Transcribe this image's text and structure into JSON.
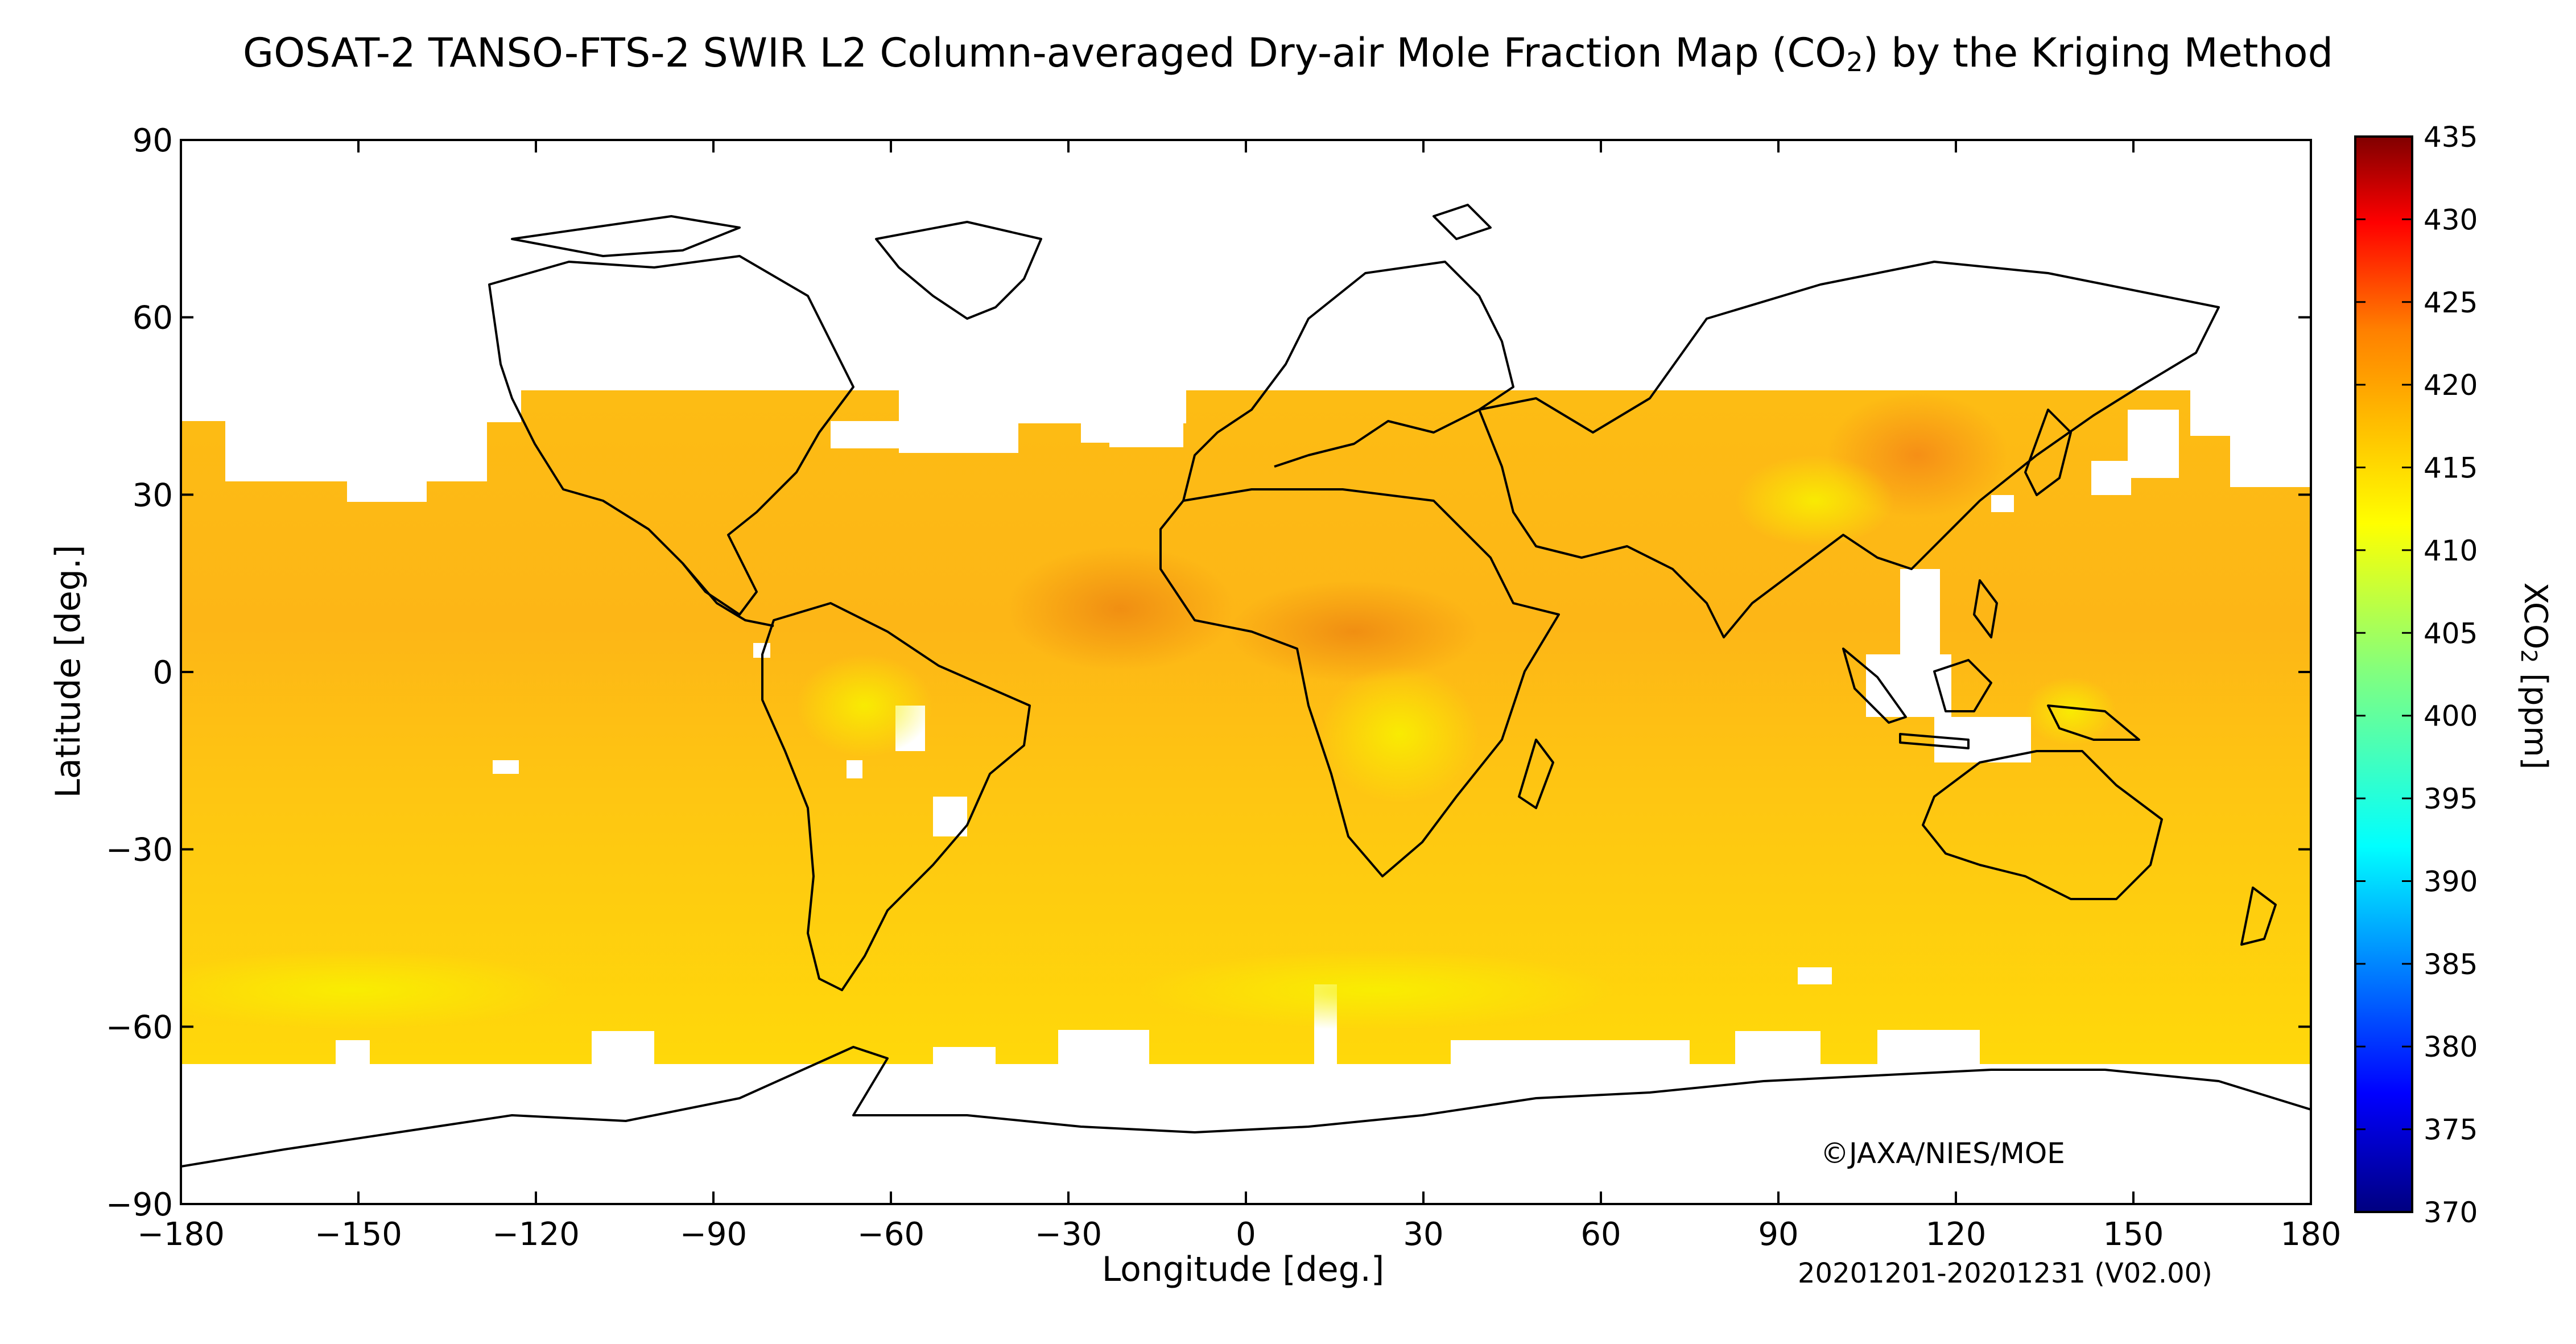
{
  "title": {
    "pre": "GOSAT-2 TANSO-FTS-2 SWIR L2 Column-averaged Dry-air Mole Fraction Map (CO",
    "sub": "2",
    "post": ") by the Kriging Method"
  },
  "axes": {
    "xlabel": "Longitude [deg.]",
    "ylabel": "Latitude [deg.]",
    "xlim": [
      -180,
      180
    ],
    "ylim": [
      -90,
      90
    ],
    "xticks": [
      -180,
      -150,
      -120,
      -90,
      -60,
      -30,
      0,
      30,
      60,
      90,
      120,
      150,
      180
    ],
    "yticks": [
      90,
      60,
      30,
      0,
      -30,
      -60,
      -90
    ],
    "xtick_labels": [
      "−180",
      "−150",
      "−120",
      "−90",
      "−60",
      "−30",
      "0",
      "30",
      "60",
      "90",
      "120",
      "150",
      "180"
    ],
    "ytick_labels": [
      "90",
      "60",
      "30",
      "0",
      "−30",
      "−60",
      "−90"
    ]
  },
  "colorbar": {
    "label_pre": "XCO",
    "label_sub": "2",
    "label_post": " [ppm]",
    "range": [
      370,
      435
    ],
    "ticks": [
      435,
      430,
      425,
      420,
      415,
      410,
      405,
      400,
      395,
      390,
      385,
      380,
      375,
      370
    ],
    "colors": [
      "#000080",
      "#0000ff",
      "#0080ff",
      "#00ffff",
      "#80ff80",
      "#ffff00",
      "#ff8000",
      "#ff0000",
      "#800000"
    ]
  },
  "copyright": "©JAXA/NIES/MOE",
  "period": "20201201-20201231 (V02.00)",
  "chart_data": {
    "type": "heatmap",
    "variable": "XCO2",
    "units": "ppm",
    "lat_coverage": [
      -67,
      47
    ],
    "typical_value": 415,
    "hotspots": [
      {
        "lon": 115,
        "lat": 37,
        "value": 420
      },
      {
        "lon": -20,
        "lat": 12,
        "value": 420
      },
      {
        "lon": 20,
        "lat": 5,
        "value": 419
      },
      {
        "lon": 25,
        "lat": -12,
        "value": 411
      },
      {
        "lon": 95,
        "lat": 30,
        "value": 412
      },
      {
        "lon": -55,
        "lat": -5,
        "value": 413
      }
    ],
    "colors": {
      "white_no_data": "#ffffff",
      "base_fill": "#ffcc00"
    }
  }
}
